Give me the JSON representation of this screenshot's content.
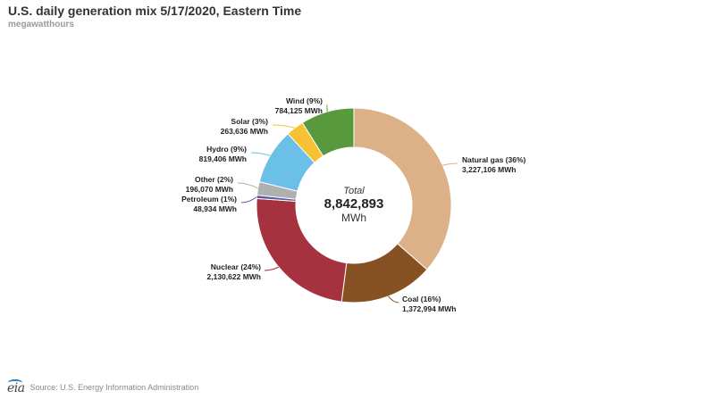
{
  "header": {
    "title": "U.S. daily generation mix 5/17/2020, Eastern Time",
    "subtitle": "megawatthours"
  },
  "chart_data": {
    "type": "pie",
    "variant": "donut",
    "title": "U.S. daily generation mix 5/17/2020, Eastern Time",
    "subtitle": "megawatthours",
    "center": {
      "label": "Total",
      "value": "8,842,893",
      "unit": "MWh"
    },
    "slices": [
      {
        "name": "Natural gas",
        "pct_label": "(36%)",
        "value": 3227106,
        "value_label": "3,227,106 MWh",
        "color": "#ddb187"
      },
      {
        "name": "Coal",
        "pct_label": "(16%)",
        "value": 1372994,
        "value_label": "1,372,994 MWh",
        "color": "#875223"
      },
      {
        "name": "Nuclear",
        "pct_label": "(24%)",
        "value": 2130622,
        "value_label": "2,130,622 MWh",
        "color": "#a63240"
      },
      {
        "name": "Petroleum",
        "pct_label": "(1%)",
        "value": 48934,
        "value_label": "48,934 MWh",
        "color": "#5a5aa3"
      },
      {
        "name": "Other",
        "pct_label": "(2%)",
        "value": 196070,
        "value_label": "196,070 MWh",
        "color": "#b0b0b0"
      },
      {
        "name": "Hydro",
        "pct_label": "(9%)",
        "value": 819406,
        "value_label": "819,406 MWh",
        "color": "#6bc0e8"
      },
      {
        "name": "Solar",
        "pct_label": "(3%)",
        "value": 263636,
        "value_label": "263,636 MWh",
        "color": "#f6c132"
      },
      {
        "name": "Wind",
        "pct_label": "(9%)",
        "value": 784125,
        "value_label": "784,125 MWh",
        "color": "#59993d"
      }
    ],
    "start_angle_deg": 0,
    "direction": "clockwise"
  },
  "footer": {
    "logo_text": "eia",
    "source": "Source: U.S. Energy Information Administration"
  }
}
